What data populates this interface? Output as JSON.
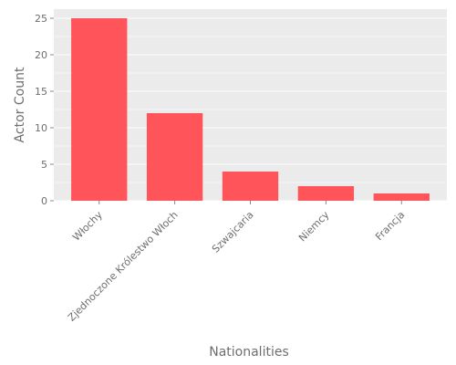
{
  "chart_data": {
    "type": "bar",
    "title": "",
    "xlabel": "Nationalities",
    "ylabel": "Actor Count",
    "categories": [
      "Włochy",
      "Zjednoczone Królestwo Włoch",
      "Szwajcaria",
      "Niemcy",
      "Francja"
    ],
    "values": [
      25,
      12,
      4,
      2,
      1
    ],
    "ylim": [
      0,
      26.25
    ],
    "yticks": [
      0,
      5,
      10,
      15,
      20,
      25
    ],
    "grid": true,
    "legend": "none",
    "colors": {
      "bar": "#ff5459",
      "panel_background": "#ebebeb",
      "grid": "#ffffff",
      "text": "#6e6e6e"
    }
  }
}
